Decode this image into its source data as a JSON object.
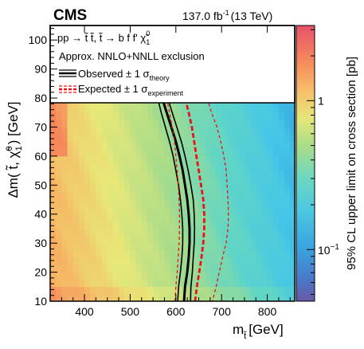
{
  "header": {
    "experiment": "CMS",
    "luminosity": "137.0 fb",
    "lumi_exponent": "-1",
    "energy": "(13 TeV)"
  },
  "legend": {
    "process": "pp → t̃ t̃, t̃ → b f f' χ̃",
    "process_sup": "0",
    "process_sub": "1",
    "exclusion": "Approx. NNLO+NNLL exclusion",
    "observed": "Observed ± 1 σ",
    "observed_sub": "theory",
    "expected": "Expected ± 1 σ",
    "expected_sub": "experiment"
  },
  "chart_data": {
    "type": "heatmap",
    "xlabel": "m",
    "xlabel_sub": "t̃",
    "xlabel_unit": "[GeV]",
    "ylabel": "Δm( t̃, χ̃",
    "ylabel_sup": "0",
    "ylabel_sub": "1",
    "ylabel_unit": ") [GeV]",
    "zlabel": "95% CL upper limit on cross section [pb]",
    "xlim": [
      325,
      860
    ],
    "ylim": [
      10,
      105
    ],
    "x_ticks": [
      "400",
      "500",
      "600",
      "700",
      "800"
    ],
    "x_tick_values": [
      400,
      500,
      600,
      700,
      800
    ],
    "y_ticks": [
      "10",
      "20",
      "30",
      "40",
      "50",
      "60",
      "70",
      "80",
      "90",
      "100"
    ],
    "y_tick_values": [
      10,
      20,
      30,
      40,
      50,
      60,
      70,
      80,
      90,
      100
    ],
    "z_scale": "log",
    "z_ticks": [
      "1",
      "10",
      "−1"
    ],
    "z_tick_values": [
      1,
      0.1
    ],
    "zlim": [
      0.045,
      3.2
    ],
    "colormap": [
      "#6a58a8",
      "#2c8fd6",
      "#45c6e8",
      "#62d6c4",
      "#a8dc8a",
      "#e8e878",
      "#f6b865",
      "#f57c5a",
      "#e8516a"
    ],
    "series": [
      {
        "name": "Observed",
        "style": "solid",
        "color": "#000000",
        "points": [
          [
            570,
            80
          ],
          [
            580,
            75
          ],
          [
            590,
            70
          ],
          [
            600,
            65
          ],
          [
            608,
            60
          ],
          [
            615,
            55
          ],
          [
            620,
            50
          ],
          [
            625,
            45
          ],
          [
            628,
            40
          ],
          [
            630,
            35
          ],
          [
            630,
            30
          ],
          [
            628,
            25
          ],
          [
            625,
            20
          ],
          [
            620,
            15
          ],
          [
            618,
            10
          ]
        ]
      },
      {
        "name": "Observed +1 σ theory",
        "style": "solid-thin",
        "color": "#000000",
        "points": [
          [
            582,
            80
          ],
          [
            592,
            75
          ],
          [
            602,
            70
          ],
          [
            612,
            65
          ],
          [
            620,
            60
          ],
          [
            627,
            55
          ],
          [
            633,
            50
          ],
          [
            638,
            45
          ],
          [
            640,
            40
          ],
          [
            641,
            35
          ],
          [
            640,
            30
          ],
          [
            638,
            25
          ],
          [
            636,
            20
          ],
          [
            633,
            15
          ],
          [
            632,
            10
          ]
        ]
      },
      {
        "name": "Observed −1 σ theory",
        "style": "solid-thin",
        "color": "#000000",
        "points": [
          [
            560,
            80
          ],
          [
            568,
            75
          ],
          [
            577,
            70
          ],
          [
            586,
            65
          ],
          [
            594,
            60
          ],
          [
            600,
            55
          ],
          [
            606,
            50
          ],
          [
            610,
            45
          ],
          [
            613,
            40
          ],
          [
            615,
            35
          ],
          [
            615,
            30
          ],
          [
            613,
            25
          ],
          [
            610,
            20
          ],
          [
            606,
            15
          ],
          [
            604,
            10
          ]
        ]
      },
      {
        "name": "Expected",
        "style": "dashed-thick",
        "color": "#e8141c",
        "points": [
          [
            620,
            80
          ],
          [
            628,
            75
          ],
          [
            635,
            70
          ],
          [
            640,
            65
          ],
          [
            645,
            60
          ],
          [
            650,
            55
          ],
          [
            655,
            50
          ],
          [
            660,
            45
          ],
          [
            662,
            40
          ],
          [
            662,
            35
          ],
          [
            660,
            30
          ],
          [
            656,
            25
          ],
          [
            651,
            20
          ],
          [
            646,
            15
          ],
          [
            642,
            10
          ]
        ]
      },
      {
        "name": "Expected +1 σ experiment",
        "style": "dashed-thin",
        "color": "#e8141c",
        "points": [
          [
            668,
            80
          ],
          [
            678,
            75
          ],
          [
            690,
            70
          ],
          [
            698,
            65
          ],
          [
            705,
            60
          ],
          [
            710,
            55
          ],
          [
            712,
            50
          ],
          [
            714,
            45
          ],
          [
            715,
            40
          ],
          [
            714,
            35
          ],
          [
            710,
            30
          ],
          [
            702,
            25
          ],
          [
            695,
            20
          ],
          [
            688,
            15
          ],
          [
            680,
            10
          ]
        ]
      },
      {
        "name": "Expected −1 σ experiment",
        "style": "dashed-thin",
        "color": "#e8141c",
        "points": [
          [
            580,
            80
          ],
          [
            586,
            75
          ],
          [
            592,
            70
          ],
          [
            597,
            65
          ],
          [
            600,
            60
          ],
          [
            603,
            55
          ],
          [
            605,
            50
          ],
          [
            607,
            45
          ],
          [
            608,
            40
          ],
          [
            608,
            35
          ],
          [
            607,
            30
          ],
          [
            605,
            25
          ],
          [
            603,
            20
          ],
          [
            600,
            15
          ],
          [
            598,
            10
          ]
        ]
      }
    ]
  }
}
